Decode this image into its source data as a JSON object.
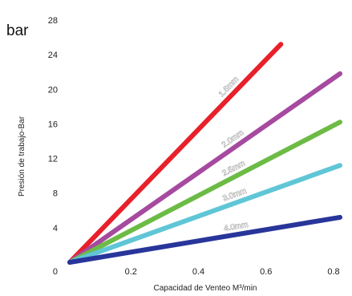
{
  "chart_data": {
    "type": "line",
    "unit_label": "bar",
    "xlabel": "Capacidad de Venteo  M³/min",
    "ylabel": "Presión de trabajo-Bar",
    "xlim": [
      0,
      0.8
    ],
    "ylim": [
      0,
      28
    ],
    "x_ticks": [
      0,
      0.2,
      0.4,
      0.6,
      0.8
    ],
    "x_tick_labels": [
      "0",
      "0.2",
      "0.4",
      "0.6",
      "0.8"
    ],
    "y_ticks": [
      0,
      4,
      8,
      12,
      16,
      20,
      24,
      28
    ],
    "y_tick_labels": [
      "0",
      "4",
      "8",
      "12",
      "16",
      "20",
      "24",
      "28"
    ],
    "grid": false,
    "legend": "none",
    "series": [
      {
        "name": "1.6mm",
        "color": "#e8202a",
        "x": [
          0,
          0.625
        ],
        "y": [
          0,
          25.2
        ]
      },
      {
        "name": "2.0mm",
        "color": "#a64aa0",
        "x": [
          0,
          0.8
        ],
        "y": [
          0,
          21.8
        ]
      },
      {
        "name": "2.5mm",
        "color": "#6cbb45",
        "x": [
          0,
          0.8
        ],
        "y": [
          0,
          16.2
        ]
      },
      {
        "name": "3.0mm",
        "color": "#5fc6d6",
        "x": [
          0,
          0.8
        ],
        "y": [
          0,
          11.2
        ]
      },
      {
        "name": "4.0mm",
        "color": "#28359a",
        "x": [
          0,
          0.8
        ],
        "y": [
          0,
          5.2
        ]
      }
    ]
  }
}
